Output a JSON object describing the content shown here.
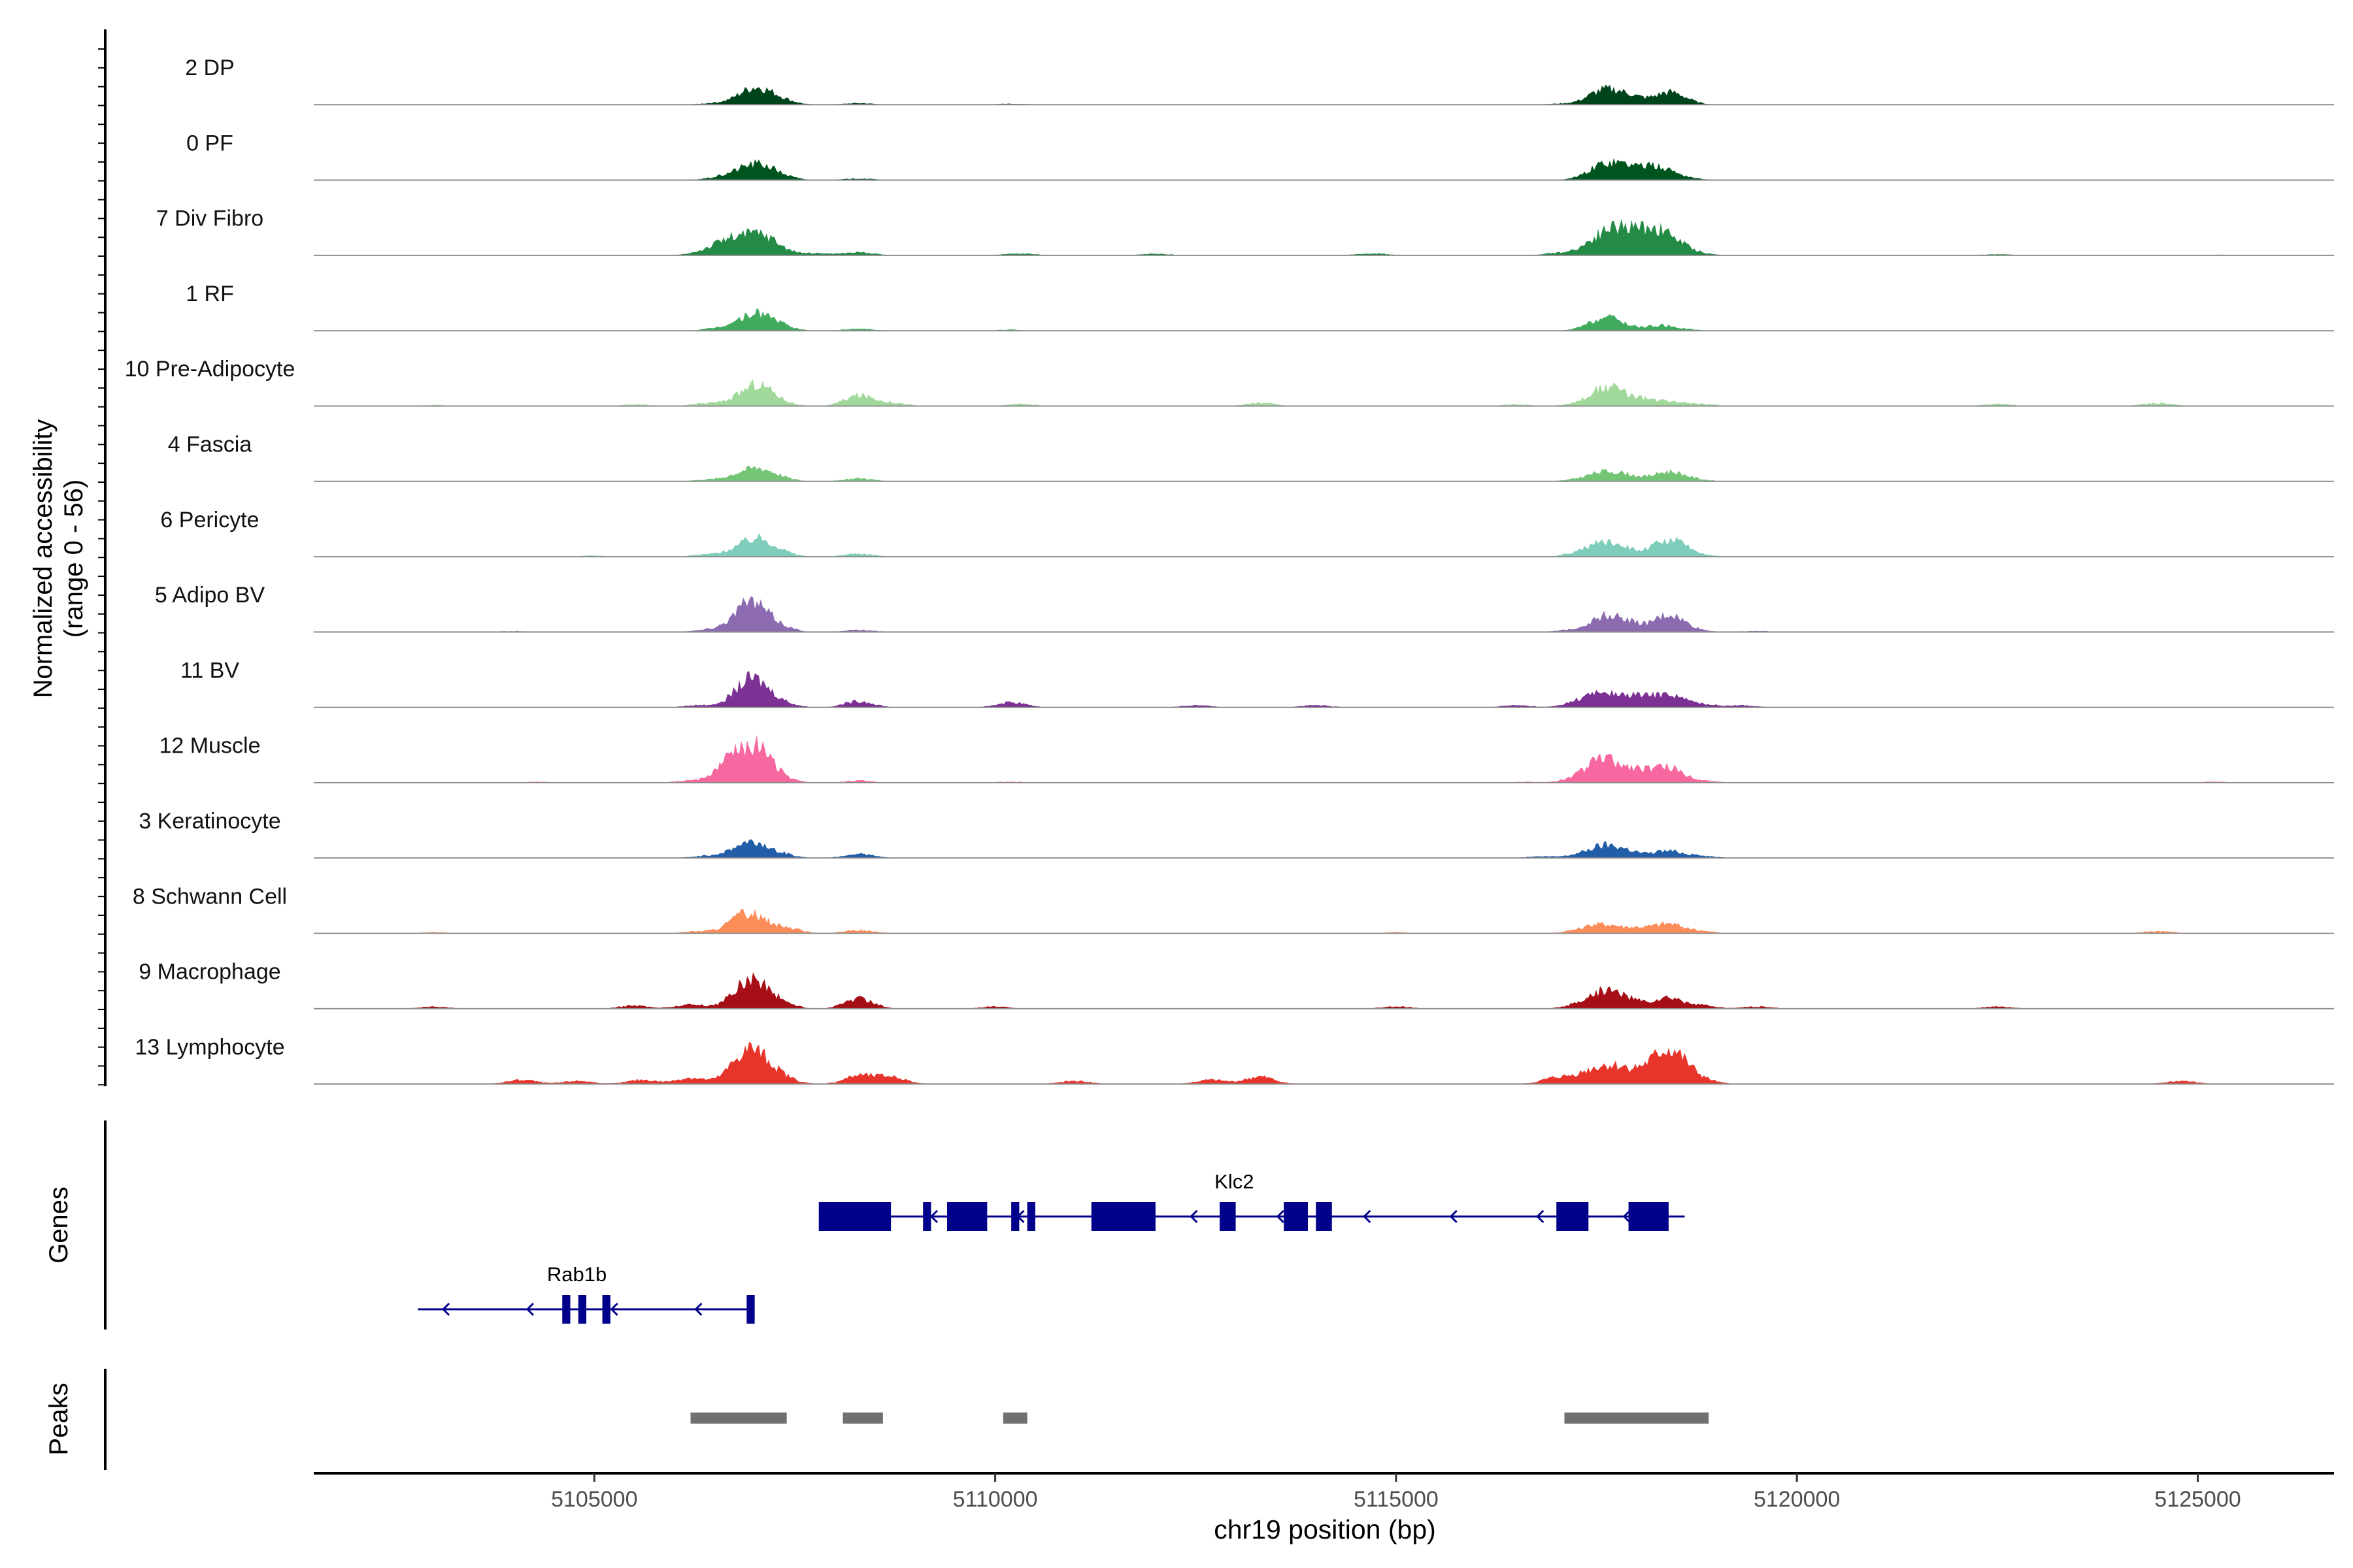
{
  "chart_data": {
    "type": "area",
    "title": "",
    "ylabel_line1": "Normalized accessibility",
    "ylabel_line2": "(range 0 - 56)",
    "ylim": [
      0,
      56
    ],
    "xlabel": "chr19 position (bp)",
    "xlim": [
      5101500,
      5126700
    ],
    "xticks": [
      5105000,
      5110000,
      5115000,
      5120000,
      5125000
    ],
    "xtick_labels": [
      "5105000",
      "5110000",
      "5115000",
      "5120000",
      "5125000"
    ],
    "genes_label": "Genes",
    "peaks_label": "Peaks",
    "tracks": [
      {
        "label": "2 DP",
        "color": "#00441b",
        "profile": [
          [
            5105200,
            0.3
          ],
          [
            5106500,
            1.5
          ],
          [
            5106900,
            7
          ],
          [
            5107050,
            10
          ],
          [
            5107300,
            5
          ],
          [
            5108300,
            1.5
          ],
          [
            5110200,
            1
          ],
          [
            5117000,
            0.8
          ],
          [
            5117400,
            2
          ],
          [
            5117600,
            12
          ],
          [
            5117900,
            8
          ],
          [
            5118400,
            11
          ],
          [
            5118600,
            2
          ],
          [
            5120000,
            0.2
          ]
        ]
      },
      {
        "label": "0 PF",
        "color": "#00551f",
        "profile": [
          [
            5106500,
            1.5
          ],
          [
            5106800,
            6
          ],
          [
            5107050,
            12
          ],
          [
            5107300,
            4
          ],
          [
            5108300,
            1.5
          ],
          [
            5117400,
            2
          ],
          [
            5117600,
            12
          ],
          [
            5117800,
            6
          ],
          [
            5118000,
            8
          ],
          [
            5118300,
            10
          ],
          [
            5118600,
            2
          ]
        ]
      },
      {
        "label": "7 Div Fibro",
        "color": "#238b45",
        "profile": [
          [
            5103500,
            0.5
          ],
          [
            5106400,
            4
          ],
          [
            5106700,
            14
          ],
          [
            5107050,
            18
          ],
          [
            5107300,
            5
          ],
          [
            5107800,
            2
          ],
          [
            5108300,
            3
          ],
          [
            5110300,
            2
          ],
          [
            5112000,
            1.5
          ],
          [
            5114700,
            2
          ],
          [
            5117000,
            2
          ],
          [
            5117400,
            6
          ],
          [
            5117650,
            18
          ],
          [
            5117900,
            14
          ],
          [
            5118150,
            16
          ],
          [
            5118400,
            14
          ],
          [
            5118700,
            3
          ],
          [
            5122500,
            1
          ],
          [
            5125300,
            0.5
          ]
        ]
      },
      {
        "label": "1 RF",
        "color": "#41ab5d",
        "profile": [
          [
            5106500,
            1.5
          ],
          [
            5106800,
            5
          ],
          [
            5107050,
            14
          ],
          [
            5107300,
            4
          ],
          [
            5108300,
            2
          ],
          [
            5110200,
            1
          ],
          [
            5117400,
            1.5
          ],
          [
            5117600,
            10
          ],
          [
            5117800,
            4
          ],
          [
            5118300,
            5
          ],
          [
            5118600,
            1
          ]
        ]
      },
      {
        "label": "10 Pre-Adipocyte",
        "color": "#a1d99b",
        "profile": [
          [
            5103000,
            1
          ],
          [
            5105500,
            1.5
          ],
          [
            5106400,
            2.5
          ],
          [
            5106800,
            5
          ],
          [
            5107050,
            18
          ],
          [
            5107300,
            3
          ],
          [
            5108300,
            10
          ],
          [
            5108700,
            3
          ],
          [
            5110300,
            2
          ],
          [
            5113300,
            3
          ],
          [
            5116500,
            1.5
          ],
          [
            5117300,
            2
          ],
          [
            5117600,
            16
          ],
          [
            5117800,
            3
          ],
          [
            5118000,
            6
          ],
          [
            5118400,
            5
          ],
          [
            5118800,
            2
          ],
          [
            5122500,
            2
          ],
          [
            5124500,
            3
          ]
        ]
      },
      {
        "label": "4 Fascia",
        "color": "#74c476",
        "profile": [
          [
            5106400,
            1.5
          ],
          [
            5106800,
            5
          ],
          [
            5107050,
            10
          ],
          [
            5107300,
            3
          ],
          [
            5108300,
            3
          ],
          [
            5117300,
            2
          ],
          [
            5117600,
            8
          ],
          [
            5117900,
            5
          ],
          [
            5118400,
            9
          ],
          [
            5118700,
            2
          ]
        ]
      },
      {
        "label": "6 Pericyte",
        "color": "#7fcdbb",
        "profile": [
          [
            5105000,
            1
          ],
          [
            5106400,
            2
          ],
          [
            5106800,
            6
          ],
          [
            5107050,
            14
          ],
          [
            5107300,
            4
          ],
          [
            5108300,
            3
          ],
          [
            5117300,
            4
          ],
          [
            5117600,
            12
          ],
          [
            5117900,
            6
          ],
          [
            5118400,
            16
          ],
          [
            5118700,
            3
          ]
        ]
      },
      {
        "label": "5 Adipo BV",
        "color": "#8c6bb1",
        "profile": [
          [
            5104000,
            0.8
          ],
          [
            5106400,
            2
          ],
          [
            5106800,
            10
          ],
          [
            5107000,
            22
          ],
          [
            5107300,
            5
          ],
          [
            5108300,
            2
          ],
          [
            5117200,
            2
          ],
          [
            5117600,
            14
          ],
          [
            5117900,
            8
          ],
          [
            5118400,
            16
          ],
          [
            5118700,
            2
          ],
          [
            5119500,
            1
          ]
        ]
      },
      {
        "label": "11 BV",
        "color": "#7b3294",
        "profile": [
          [
            5106300,
            2
          ],
          [
            5106800,
            8
          ],
          [
            5107000,
            22
          ],
          [
            5107300,
            5
          ],
          [
            5108300,
            6
          ],
          [
            5110200,
            5
          ],
          [
            5112500,
            2
          ],
          [
            5114000,
            2
          ],
          [
            5116500,
            2
          ],
          [
            5117300,
            6
          ],
          [
            5117600,
            12
          ],
          [
            5118000,
            10
          ],
          [
            5118400,
            12
          ],
          [
            5118800,
            3
          ],
          [
            5119300,
            2
          ]
        ]
      },
      {
        "label": "12 Muscle",
        "color": "#f768a1",
        "profile": [
          [
            5104300,
            1
          ],
          [
            5106200,
            2
          ],
          [
            5106700,
            18
          ],
          [
            5106900,
            10
          ],
          [
            5107050,
            24
          ],
          [
            5107300,
            4
          ],
          [
            5108300,
            2
          ],
          [
            5110200,
            1
          ],
          [
            5116600,
            1
          ],
          [
            5117300,
            6
          ],
          [
            5117600,
            22
          ],
          [
            5118000,
            12
          ],
          [
            5118400,
            14
          ],
          [
            5118800,
            2
          ],
          [
            5125200,
            1
          ]
        ]
      },
      {
        "label": "3 Keratinocyte",
        "color": "#225ea8",
        "profile": [
          [
            5106400,
            2
          ],
          [
            5106800,
            6
          ],
          [
            5107000,
            11
          ],
          [
            5107300,
            4
          ],
          [
            5108300,
            4
          ],
          [
            5116800,
            1.5
          ],
          [
            5117300,
            3
          ],
          [
            5117600,
            11
          ],
          [
            5117900,
            6
          ],
          [
            5118400,
            7
          ],
          [
            5118800,
            2
          ]
        ]
      },
      {
        "label": "8 Schwann Cell",
        "color": "#fc8d59",
        "profile": [
          [
            5103000,
            1
          ],
          [
            5106300,
            2
          ],
          [
            5106800,
            10
          ],
          [
            5107000,
            13
          ],
          [
            5107400,
            5
          ],
          [
            5108300,
            3
          ],
          [
            5115000,
            1
          ],
          [
            5117300,
            3
          ],
          [
            5117600,
            8
          ],
          [
            5118000,
            5
          ],
          [
            5118400,
            9
          ],
          [
            5118800,
            2
          ],
          [
            5124500,
            2
          ]
        ]
      },
      {
        "label": "9 Macrophage",
        "color": "#a50f15",
        "profile": [
          [
            5103000,
            2
          ],
          [
            5105500,
            3
          ],
          [
            5106200,
            4
          ],
          [
            5106800,
            10
          ],
          [
            5107000,
            22
          ],
          [
            5107300,
            6
          ],
          [
            5108300,
            10
          ],
          [
            5110000,
            2
          ],
          [
            5115000,
            2
          ],
          [
            5117300,
            4
          ],
          [
            5117600,
            15
          ],
          [
            5117900,
            8
          ],
          [
            5118400,
            10
          ],
          [
            5118800,
            3
          ],
          [
            5119500,
            2
          ],
          [
            5122500,
            2
          ]
        ]
      },
      {
        "label": "13 Lymphocyte",
        "color": "#e8352b",
        "profile": [
          [
            5104100,
            4
          ],
          [
            5104800,
            3
          ],
          [
            5105600,
            4
          ],
          [
            5106200,
            6
          ],
          [
            5106800,
            14
          ],
          [
            5107000,
            24
          ],
          [
            5107300,
            8
          ],
          [
            5108300,
            8
          ],
          [
            5108700,
            7
          ],
          [
            5111000,
            3
          ],
          [
            5112700,
            4
          ],
          [
            5113300,
            7
          ],
          [
            5117000,
            6
          ],
          [
            5117400,
            10
          ],
          [
            5117700,
            14
          ],
          [
            5118000,
            8
          ],
          [
            5118300,
            18
          ],
          [
            5118500,
            20
          ],
          [
            5118800,
            4
          ],
          [
            5124800,
            3
          ]
        ]
      }
    ],
    "genes": [
      {
        "name": "Klc2",
        "start": 5107800,
        "end": 5118600,
        "strand": "-",
        "exons": [
          [
            5107800,
            5108700
          ],
          [
            5109100,
            5109200
          ],
          [
            5109400,
            5109900
          ],
          [
            5110200,
            5110300
          ],
          [
            5110400,
            5110500
          ],
          [
            5111200,
            5112000
          ],
          [
            5112800,
            5113000
          ],
          [
            5113600,
            5113900
          ],
          [
            5114000,
            5114200
          ],
          [
            5117000,
            5117400
          ],
          [
            5117900,
            5118400
          ]
        ]
      },
      {
        "name": "Rab1b",
        "start": 5102800,
        "end": 5107000,
        "strand": "-",
        "exons": [
          [
            5104600,
            5104700
          ],
          [
            5104800,
            5104900
          ],
          [
            5105100,
            5105200
          ],
          [
            5106900,
            5107000
          ]
        ]
      }
    ],
    "peaks": [
      [
        5106200,
        5107400
      ],
      [
        5108100,
        5108600
      ],
      [
        5110100,
        5110400
      ],
      [
        5117100,
        5118900
      ]
    ]
  }
}
